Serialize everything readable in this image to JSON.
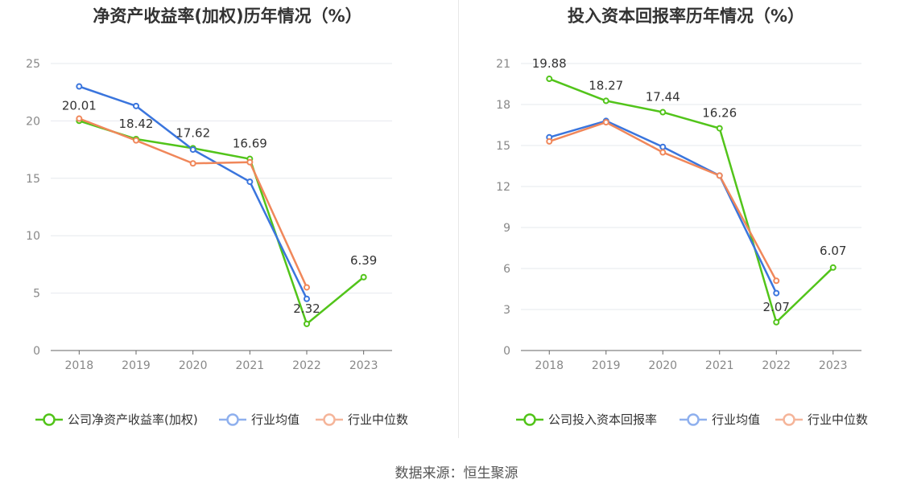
{
  "charts": [
    {
      "title": "净资产收益率(加权)历年情况（%）",
      "type": "line",
      "categories": [
        "2018",
        "2019",
        "2020",
        "2021",
        "2022",
        "2023"
      ],
      "ylim": [
        0,
        25
      ],
      "yticks": [
        0,
        5,
        10,
        15,
        20,
        25
      ],
      "series": [
        {
          "name": "公司净资产收益率(加权)",
          "color": "#52c41a",
          "values": [
            20.01,
            18.42,
            17.62,
            16.69,
            2.32,
            6.39
          ],
          "labels": [
            "20.01",
            "18.42",
            "17.62",
            "16.69",
            "2.32",
            "6.39"
          ]
        },
        {
          "name": "行业均值",
          "color": "#3a75dd",
          "values": [
            23.0,
            21.3,
            17.5,
            14.7,
            4.5,
            null
          ]
        },
        {
          "name": "行业中位数",
          "color": "#f0875a",
          "values": [
            20.2,
            18.3,
            16.3,
            16.4,
            5.5,
            null
          ]
        }
      ]
    },
    {
      "title": "投入资本回报率历年情况（%）",
      "type": "line",
      "categories": [
        "2018",
        "2019",
        "2020",
        "2021",
        "2022",
        "2023"
      ],
      "ylim": [
        0,
        21
      ],
      "yticks": [
        0,
        3,
        6,
        9,
        12,
        15,
        18,
        21
      ],
      "series": [
        {
          "name": "公司投入资本回报率",
          "color": "#52c41a",
          "values": [
            19.88,
            18.27,
            17.44,
            16.26,
            2.07,
            6.07
          ],
          "labels": [
            "19.88",
            "18.27",
            "17.44",
            "16.26",
            "2.07",
            "6.07"
          ]
        },
        {
          "name": "行业均值",
          "color": "#3a75dd",
          "values": [
            15.6,
            16.8,
            14.9,
            12.8,
            4.2,
            null
          ]
        },
        {
          "name": "行业中位数",
          "color": "#f0875a",
          "values": [
            15.3,
            16.7,
            14.5,
            12.8,
            5.1,
            null
          ]
        }
      ]
    }
  ],
  "source": "数据来源：恒生聚源"
}
